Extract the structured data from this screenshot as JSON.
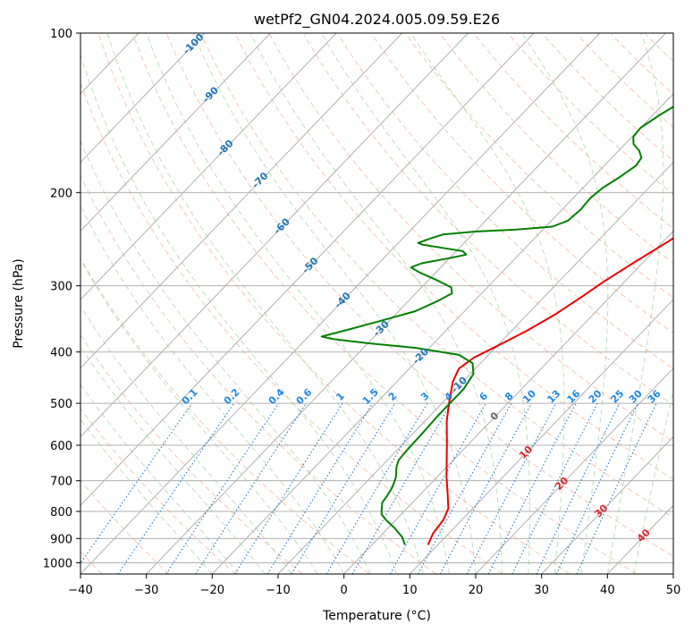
{
  "chart_data": {
    "type": "line",
    "title": "wetPf2_GN04.2024.005.09.59.E26",
    "xlabel": "Temperature (°C)",
    "ylabel": "Pressure (hPa)",
    "xlim": [
      -40,
      50
    ],
    "ylim": [
      1050,
      100
    ],
    "y_scale": "log",
    "grid": true,
    "x_ticks": [
      "−40",
      "−30",
      "−20",
      "−10",
      "0",
      "10",
      "20",
      "30",
      "40",
      "50"
    ],
    "y_ticks": [
      "100",
      "200",
      "300",
      "400",
      "500",
      "600",
      "700",
      "800",
      "900",
      "1000"
    ],
    "isotherm_labels": [
      "-100",
      "-90",
      "-80",
      "-70",
      "-60",
      "-50",
      "-40",
      "-30",
      "-20",
      "-10",
      "0",
      "10",
      "20",
      "30",
      "40"
    ],
    "mixing_ratio_labels": [
      "0.1",
      "0.2",
      "0.4",
      "0.6",
      "1",
      "1.5",
      "2",
      "3",
      "4",
      "6",
      "8",
      "10",
      "13",
      "16",
      "20",
      "25",
      "30",
      "36"
    ],
    "series": [
      {
        "color": "#ee0000",
        "points": [
          [
            8.5,
            925
          ],
          [
            7.6,
            880
          ],
          [
            7.2,
            830
          ],
          [
            6.3,
            790
          ],
          [
            4.0,
            740
          ],
          [
            1.5,
            690
          ],
          [
            -1.0,
            640
          ],
          [
            -3.7,
            590
          ],
          [
            -6.7,
            540
          ],
          [
            -9.5,
            490
          ],
          [
            -11.5,
            455
          ],
          [
            -12.5,
            430
          ],
          [
            -11.8,
            410
          ],
          [
            -10.0,
            390
          ],
          [
            -7.7,
            365
          ],
          [
            -5.8,
            340
          ],
          [
            -4.3,
            315
          ],
          [
            -3.2,
            295
          ],
          [
            -1.3,
            270
          ],
          [
            0.8,
            247
          ],
          [
            2.2,
            228
          ],
          [
            3.4,
            208
          ],
          [
            4.7,
            190
          ],
          [
            6.6,
            172
          ],
          [
            8.5,
            155
          ],
          [
            10.9,
            140
          ],
          [
            13.8,
            128
          ],
          [
            16.5,
            118
          ],
          [
            19.2,
            110
          ],
          [
            21.6,
            104
          ],
          [
            22.8,
            100
          ]
        ]
      },
      {
        "color": "#008000",
        "points": [
          [
            5.0,
            925
          ],
          [
            3.5,
            895
          ],
          [
            1.0,
            860
          ],
          [
            -1.5,
            830
          ],
          [
            -3.0,
            810
          ],
          [
            -3.8,
            790
          ],
          [
            -4.6,
            770
          ],
          [
            -4.8,
            750
          ],
          [
            -5.3,
            720
          ],
          [
            -6.2,
            690
          ],
          [
            -7.6,
            660
          ],
          [
            -8.3,
            640
          ],
          [
            -8.5,
            610
          ],
          [
            -8.6,
            570
          ],
          [
            -8.8,
            530
          ],
          [
            -8.8,
            500
          ],
          [
            -8.8,
            470
          ],
          [
            -9.5,
            440
          ],
          [
            -11.2,
            420
          ],
          [
            -14.5,
            405
          ],
          [
            -22.0,
            393
          ],
          [
            -30.0,
            385
          ],
          [
            -36.0,
            378
          ],
          [
            -38.0,
            374
          ],
          [
            -35.5,
            365
          ],
          [
            -31.5,
            350
          ],
          [
            -27.5,
            335
          ],
          [
            -25.5,
            320
          ],
          [
            -24.5,
            310
          ],
          [
            -25.5,
            302
          ],
          [
            -29.0,
            292
          ],
          [
            -32.5,
            283
          ],
          [
            -34.5,
            277
          ],
          [
            -33.5,
            272
          ],
          [
            -30.0,
            266
          ],
          [
            -28.0,
            262
          ],
          [
            -29.0,
            258
          ],
          [
            -33.0,
            254
          ],
          [
            -36.0,
            251
          ],
          [
            -37.0,
            249
          ],
          [
            -36.0,
            245
          ],
          [
            -34.5,
            240
          ],
          [
            -30.0,
            237
          ],
          [
            -24.0,
            235
          ],
          [
            -19.0,
            232
          ],
          [
            -17.5,
            226
          ],
          [
            -17.2,
            215
          ],
          [
            -17.4,
            205
          ],
          [
            -17.0,
            196
          ],
          [
            -16.0,
            187
          ],
          [
            -15.2,
            178
          ],
          [
            -15.5,
            172
          ],
          [
            -16.8,
            167
          ],
          [
            -18.7,
            162
          ],
          [
            -19.8,
            157
          ],
          [
            -20.0,
            151
          ],
          [
            -19.0,
            143
          ],
          [
            -17.6,
            135
          ],
          [
            -15.4,
            128
          ],
          [
            -12.8,
            122
          ],
          [
            -10.3,
            116
          ],
          [
            -8.0,
            110
          ],
          [
            -6.4,
            105
          ],
          [
            -5.8,
            102
          ],
          [
            -5.4,
            100
          ]
        ]
      }
    ]
  }
}
